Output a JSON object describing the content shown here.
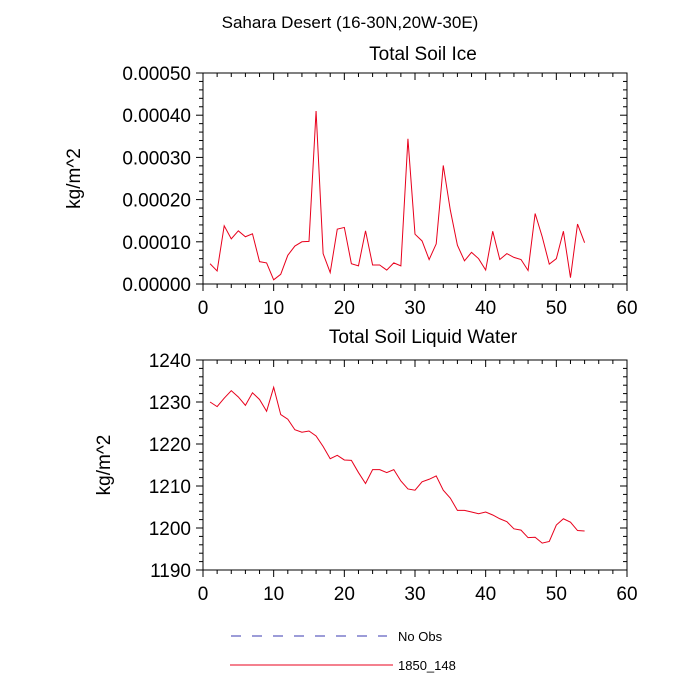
{
  "figure": {
    "suptitle": "Sahara Desert (16-30N,20W-30E)"
  },
  "chart_data": [
    {
      "type": "line",
      "title": "Total Soil Ice",
      "xlabel": "",
      "ylabel": "kg/m^2",
      "xlim": [
        0,
        60
      ],
      "ylim": [
        0,
        0.0005
      ],
      "xticks": [
        0,
        10,
        20,
        30,
        40,
        50,
        60
      ],
      "yticks": [
        "0.00000",
        "0.00010",
        "0.00020",
        "0.00030",
        "0.00040",
        "0.00050"
      ],
      "ytick_values": [
        0,
        0.0001,
        0.0002,
        0.0003,
        0.0004,
        0.0005
      ],
      "x": [
        1,
        2,
        3,
        4,
        5,
        6,
        7,
        8,
        9,
        10,
        11,
        12,
        13,
        14,
        15,
        16,
        17,
        18,
        19,
        20,
        21,
        22,
        23,
        24,
        25,
        26,
        27,
        28,
        29,
        30,
        31,
        32,
        33,
        34,
        35,
        36,
        37,
        38,
        39,
        40,
        41,
        42,
        43,
        44,
        45,
        46,
        47,
        48,
        49,
        50,
        51,
        52,
        53,
        54
      ],
      "series": [
        {
          "name": "1850_148",
          "color": "#e8001c",
          "values": [
            4.8e-05,
            3.1e-05,
            0.000138,
            0.000107,
            0.000126,
            0.000112,
            0.000119,
            5.3e-05,
            5e-05,
            1e-05,
            2.3e-05,
            6.8e-05,
            9e-05,
            0.0001,
            0.000101,
            0.00041,
            7.2e-05,
            2.7e-05,
            0.00013,
            0.000134,
            4.8e-05,
            4.3e-05,
            0.000126,
            4.5e-05,
            4.5e-05,
            3.3e-05,
            5e-05,
            4.3e-05,
            0.000344,
            0.000118,
            0.000102,
            5.8e-05,
            9.5e-05,
            0.000281,
            0.000175,
            9.2e-05,
            5.5e-05,
            7.5e-05,
            6e-05,
            3.3e-05,
            0.000125,
            5.8e-05,
            7.2e-05,
            6.3e-05,
            5.8e-05,
            3.2e-05,
            0.000167,
            0.000112,
            4.7e-05,
            6e-05,
            0.000125,
            1.5e-05,
            0.000142,
            9.8e-05
          ]
        }
      ]
    },
    {
      "type": "line",
      "title": "Total Soil Liquid Water",
      "xlabel": "",
      "ylabel": "kg/m^2",
      "xlim": [
        0,
        60
      ],
      "ylim": [
        1190,
        1240
      ],
      "xticks": [
        0,
        10,
        20,
        30,
        40,
        50,
        60
      ],
      "yticks": [
        "1190",
        "1200",
        "1210",
        "1220",
        "1230",
        "1240"
      ],
      "ytick_values": [
        1190,
        1200,
        1210,
        1220,
        1230,
        1240
      ],
      "x": [
        1,
        2,
        3,
        4,
        5,
        6,
        7,
        8,
        9,
        10,
        11,
        12,
        13,
        14,
        15,
        16,
        17,
        18,
        19,
        20,
        21,
        22,
        23,
        24,
        25,
        26,
        27,
        28,
        29,
        30,
        31,
        32,
        33,
        34,
        35,
        36,
        37,
        38,
        39,
        40,
        41,
        42,
        43,
        44,
        45,
        46,
        47,
        48,
        49,
        50,
        51,
        52,
        53,
        54
      ],
      "series": [
        {
          "name": "1850_148",
          "color": "#e8001c",
          "values": [
            1230.0,
            1228.9,
            1230.9,
            1232.7,
            1231.2,
            1229.2,
            1232.2,
            1230.6,
            1227.8,
            1233.5,
            1227.0,
            1225.9,
            1223.4,
            1222.8,
            1223.1,
            1221.9,
            1219.4,
            1216.5,
            1217.3,
            1216.2,
            1216.1,
            1213.2,
            1210.6,
            1213.9,
            1213.9,
            1213.2,
            1213.9,
            1211.2,
            1209.3,
            1209.0,
            1211.0,
            1211.6,
            1212.4,
            1209.0,
            1207.1,
            1204.2,
            1204.2,
            1203.8,
            1203.4,
            1203.8,
            1203.1,
            1202.2,
            1201.5,
            1199.8,
            1199.5,
            1197.7,
            1197.8,
            1196.4,
            1196.8,
            1200.7,
            1202.2,
            1201.4,
            1199.4,
            1199.3
          ]
        }
      ]
    }
  ],
  "legend": {
    "placement": "bottom-center",
    "items": [
      {
        "label": "No Obs",
        "color": "#3a3ab0",
        "style": "dashed"
      },
      {
        "label": "1850_148",
        "color": "#e8001c",
        "style": "solid"
      }
    ]
  }
}
